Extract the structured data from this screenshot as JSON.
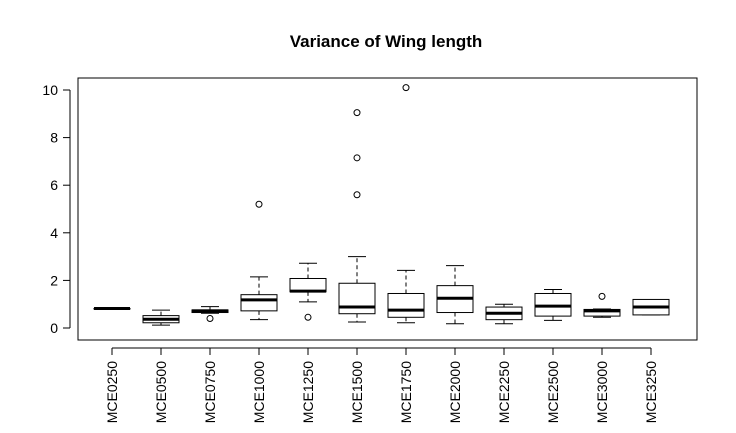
{
  "chart_data": {
    "type": "boxplot",
    "title": "Variance of Wing length",
    "xlabel": "",
    "ylabel": "",
    "ylim": [
      -0.3,
      10.5
    ],
    "yticks": [
      0,
      2,
      4,
      6,
      8,
      10
    ],
    "grid": false,
    "legend": "none",
    "categories": [
      "MCE0250",
      "MCE0500",
      "MCE0750",
      "MCE1000",
      "MCE1250",
      "MCE1500",
      "MCE1750",
      "MCE2000",
      "MCE2250",
      "MCE2500",
      "MCE3000",
      "MCE3250"
    ],
    "boxes": [
      {
        "min": 0.82,
        "q1": 0.82,
        "median": 0.82,
        "q3": 0.82,
        "max": 0.82,
        "outliers": []
      },
      {
        "min": 0.12,
        "q1": 0.22,
        "median": 0.37,
        "q3": 0.52,
        "max": 0.75,
        "outliers": []
      },
      {
        "min": 0.62,
        "q1": 0.65,
        "median": 0.72,
        "q3": 0.76,
        "max": 0.9,
        "outliers": [
          0.4
        ]
      },
      {
        "min": 0.35,
        "q1": 0.72,
        "median": 1.18,
        "q3": 1.4,
        "max": 2.15,
        "outliers": [
          5.2
        ]
      },
      {
        "min": 1.1,
        "q1": 1.52,
        "median": 1.55,
        "q3": 2.08,
        "max": 2.72,
        "outliers": [
          0.45
        ]
      },
      {
        "min": 0.25,
        "q1": 0.6,
        "median": 0.88,
        "q3": 1.88,
        "max": 3.0,
        "outliers": [
          5.6,
          7.15,
          9.05
        ]
      },
      {
        "min": 0.22,
        "q1": 0.45,
        "median": 0.75,
        "q3": 1.45,
        "max": 2.42,
        "outliers": [
          10.1
        ]
      },
      {
        "min": 0.18,
        "q1": 0.65,
        "median": 1.25,
        "q3": 1.78,
        "max": 2.62,
        "outliers": []
      },
      {
        "min": 0.18,
        "q1": 0.35,
        "median": 0.62,
        "q3": 0.88,
        "max": 1.0,
        "outliers": []
      },
      {
        "min": 0.32,
        "q1": 0.5,
        "median": 0.92,
        "q3": 1.45,
        "max": 1.62,
        "outliers": []
      },
      {
        "min": 0.45,
        "q1": 0.5,
        "median": 0.72,
        "q3": 0.78,
        "max": 0.8,
        "outliers": [
          1.33
        ]
      },
      {
        "min": 0.55,
        "q1": 0.55,
        "median": 0.88,
        "q3": 1.2,
        "max": 1.2,
        "outliers": []
      }
    ],
    "colors": {
      "box_fill": "#ffffff",
      "stroke": "#000000",
      "background": "#ffffff"
    }
  }
}
